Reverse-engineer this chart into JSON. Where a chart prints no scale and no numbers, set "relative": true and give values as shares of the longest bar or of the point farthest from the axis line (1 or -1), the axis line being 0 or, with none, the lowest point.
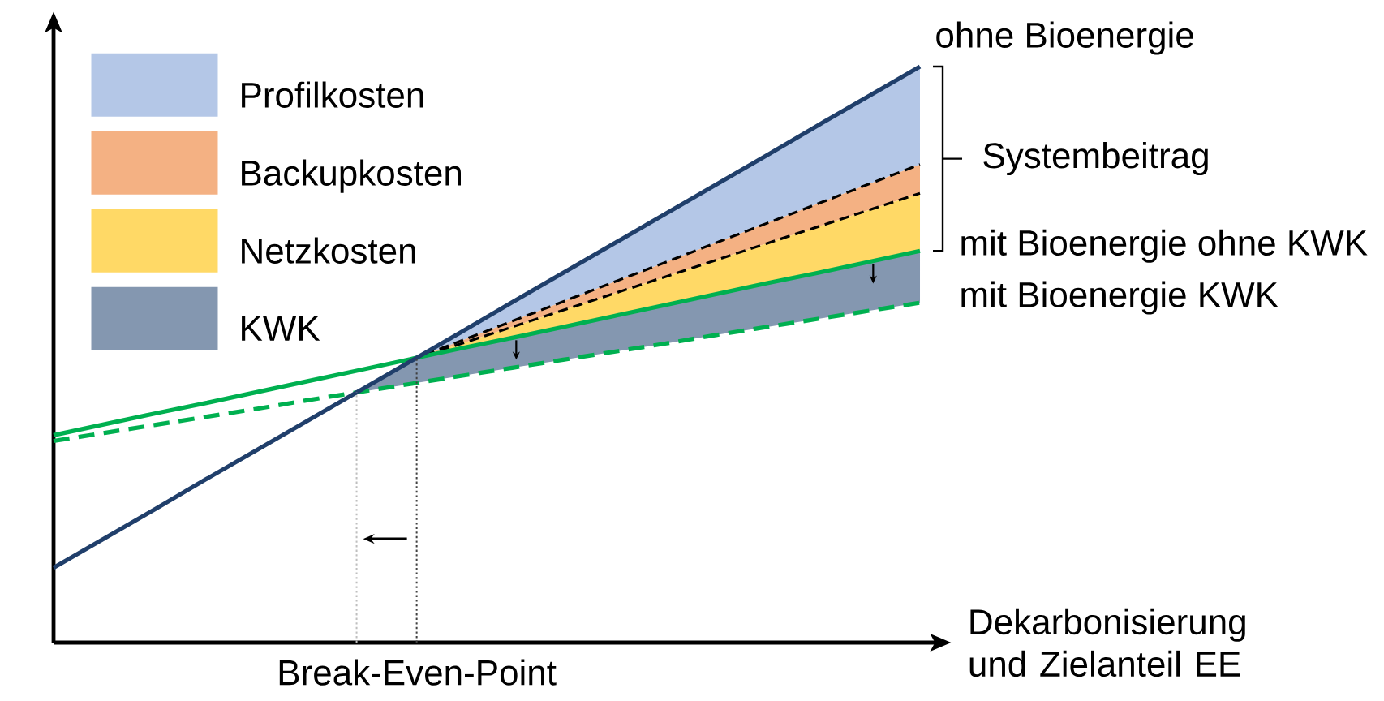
{
  "chart_data": {
    "type": "line",
    "relative": true,
    "xlabel": "Dekarbonisierung und Zielanteil EE",
    "legend": "top left",
    "categories": [
      null,
      null,
      null,
      null,
      null,
      null,
      null,
      null,
      null,
      null,
      null,
      null,
      null,
      null,
      null,
      null,
      null,
      null
    ],
    "series": [
      {
        "name": "ohne Bioenergie",
        "color": "#203f6b",
        "line_style": "solid",
        "values": [
          0.13,
          0.181,
          0.232,
          0.284,
          0.335,
          0.386,
          0.437,
          0.488,
          0.539,
          0.591,
          0.642,
          0.693,
          0.744,
          0.795,
          0.846,
          0.898,
          0.949,
          1
        ]
      },
      {
        "name": "mit Bioenergie ohne KWK",
        "color": "#00b050",
        "line_style": "solid",
        "values": [
          0.36,
          0.379,
          0.398,
          0.416,
          0.435,
          0.454,
          0.473,
          0.492,
          0.511,
          0.529,
          0.548,
          0.567,
          0.586,
          0.605,
          0.624,
          0.642,
          0.661,
          0.68
        ]
      },
      {
        "name": "mit Bioenergie KWK",
        "color": "#00b050",
        "line_style": "dashed",
        "values": [
          0.35,
          0.364,
          0.378,
          0.392,
          0.406,
          0.421,
          0.435,
          0.449,
          0.463,
          0.477,
          0.491,
          0.505,
          0.519,
          0.534,
          0.548,
          0.562,
          0.576,
          0.59
        ]
      },
      {
        "color": "#000000",
        "line_style": "dashed",
        "values": [
          null,
          null,
          null,
          null,
          null,
          null,
          null,
          0.49,
          0.524,
          0.558,
          0.592,
          0.626,
          0.66,
          0.694,
          0.728,
          0.762,
          0.796,
          0.83
        ]
      },
      {
        "color": "#000000",
        "line_style": "dashed",
        "values": [
          null,
          null,
          null,
          null,
          null,
          null,
          null,
          0.49,
          0.519,
          0.548,
          0.577,
          0.606,
          0.635,
          0.664,
          0.693,
          0.722,
          0.751,
          0.78
        ]
      },
      {
        "name": "Profilkosten",
        "type": "area",
        "color": "#b4c7e7",
        "values": [
          null,
          null,
          null,
          null,
          null,
          null,
          null,
          null,
          null,
          null,
          null,
          null,
          null,
          null,
          null,
          null,
          null,
          null
        ],
        "upper": [
          null,
          null,
          null,
          null,
          null,
          null,
          null,
          0.49,
          0.539,
          0.591,
          0.642,
          0.693,
          0.744,
          0.795,
          0.846,
          0.898,
          0.949,
          1
        ],
        "lower": [
          null,
          null,
          null,
          null,
          null,
          null,
          null,
          0.49,
          0.524,
          0.558,
          0.592,
          0.626,
          0.66,
          0.694,
          0.728,
          0.762,
          0.796,
          0.83
        ]
      },
      {
        "name": "Backupkosten",
        "type": "area",
        "color": "#f4b183",
        "values": [
          null,
          null,
          null,
          null,
          null,
          null,
          null,
          null,
          null,
          null,
          null,
          null,
          null,
          null,
          null,
          null,
          null,
          null
        ],
        "upper": [
          null,
          null,
          null,
          null,
          null,
          null,
          null,
          0.49,
          0.524,
          0.558,
          0.592,
          0.626,
          0.66,
          0.694,
          0.728,
          0.762,
          0.796,
          0.83
        ],
        "lower": [
          null,
          null,
          null,
          null,
          null,
          null,
          null,
          0.49,
          0.519,
          0.548,
          0.577,
          0.606,
          0.635,
          0.664,
          0.693,
          0.722,
          0.751,
          0.78
        ]
      },
      {
        "name": "Netzkosten",
        "type": "area",
        "color": "#ffd966",
        "values": [
          null,
          null,
          null,
          null,
          null,
          null,
          null,
          null,
          null,
          null,
          null,
          null,
          null,
          null,
          null,
          null,
          null,
          null
        ],
        "upper": [
          null,
          null,
          null,
          null,
          null,
          null,
          null,
          0.49,
          0.519,
          0.548,
          0.577,
          0.606,
          0.635,
          0.664,
          0.693,
          0.722,
          0.751,
          0.78
        ],
        "lower": [
          null,
          null,
          null,
          null,
          null,
          null,
          null,
          0.49,
          0.511,
          0.529,
          0.548,
          0.567,
          0.586,
          0.605,
          0.624,
          0.642,
          0.661,
          0.68
        ]
      },
      {
        "name": "KWK",
        "type": "area",
        "color": "#8497b0",
        "values": [
          null,
          null,
          null,
          null,
          null,
          null,
          null,
          null,
          null,
          null,
          null,
          null,
          null,
          null,
          null,
          null,
          null,
          null
        ],
        "upper": [
          null,
          null,
          null,
          null,
          null,
          null,
          0.437,
          0.49,
          0.511,
          0.529,
          0.548,
          0.567,
          0.586,
          0.605,
          0.624,
          0.642,
          0.661,
          0.68
        ],
        "lower": [
          null,
          null,
          null,
          null,
          null,
          null,
          0.435,
          0.449,
          0.463,
          0.477,
          0.491,
          0.505,
          0.519,
          0.534,
          0.548,
          0.562,
          0.576,
          0.59
        ]
      }
    ],
    "annotations": [
      "Systembeitrag",
      "Break-Even-Point"
    ]
  }
}
